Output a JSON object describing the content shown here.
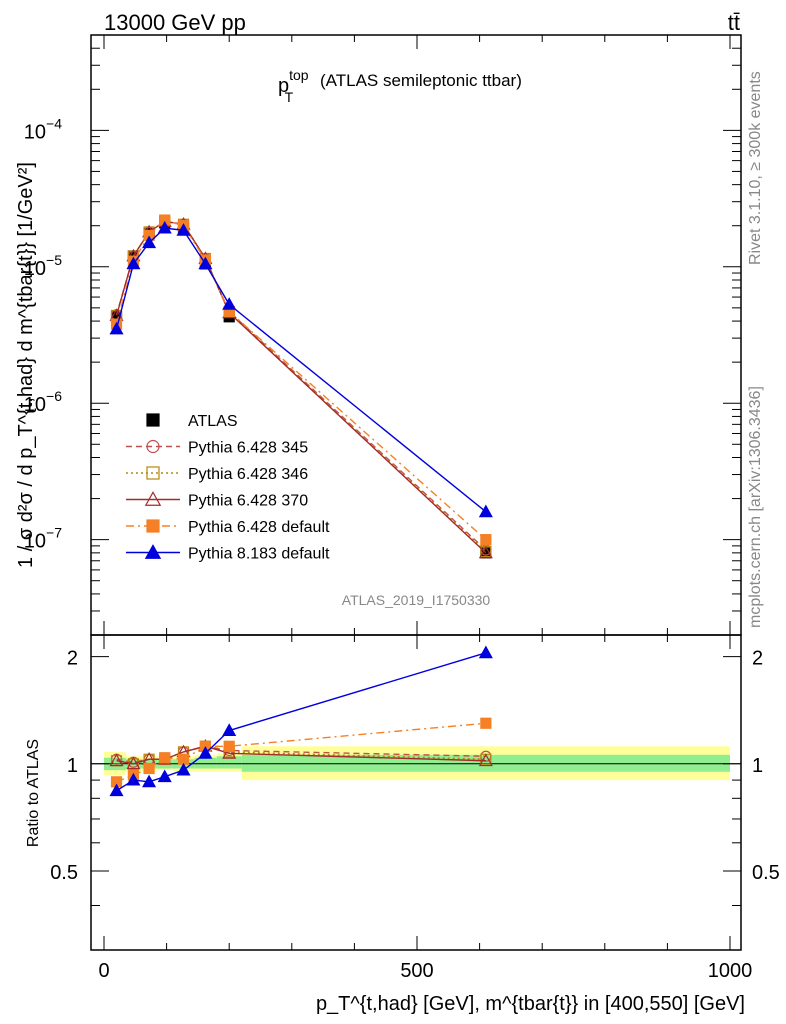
{
  "header": {
    "left": "13000 GeV pp",
    "right": "tt̄"
  },
  "side_labels": {
    "rivet": "Rivet 3.1.10, ≥ 300k events",
    "mcplots": "mcplots.cern.ch [arXiv:1306.3436]"
  },
  "chart_data": [
    {
      "type": "line",
      "panel": "main",
      "title": {
        "main": "p",
        "sup": "top",
        "sub": "T",
        "rest": "(ATLAS semileptonic ttbar)"
      },
      "ylabel": "1 / σ d²σ / d p_T^{t,had} d m^{tbar{t}} [1/GeV²]",
      "yscale": "log",
      "ylim": [
        2e-08,
        0.0005
      ],
      "xlim": [
        -20,
        1000
      ],
      "yticks": [
        {
          "value": 1e-07,
          "base": "10",
          "exp": "−7"
        },
        {
          "value": 1e-06,
          "base": "10",
          "exp": "−6"
        },
        {
          "value": 1e-05,
          "base": "10",
          "exp": "−5"
        },
        {
          "value": 0.0001,
          "base": "10",
          "exp": "−4"
        }
      ],
      "watermark": "ATLAS_2019_I1750330",
      "series": [
        {
          "name": "ATLAS",
          "color": "#000000",
          "marker": "square",
          "line": "none",
          "x": [
            20,
            47,
            72,
            97,
            127,
            162,
            200,
            610
          ],
          "y": [
            4.3e-06,
            1.2e-05,
            1.75e-05,
            2.1e-05,
            1.95e-05,
            1.05e-05,
            4.3e-06,
            8e-08
          ]
        },
        {
          "name": "Pythia 6.428 345",
          "color": "#c0504d",
          "marker": "circle-open",
          "line": "dashed",
          "x": [
            20,
            47,
            72,
            97,
            127,
            162,
            200,
            610
          ],
          "y": [
            4.45e-06,
            1.2e-05,
            1.8e-05,
            2.15e-05,
            2.05e-05,
            1.15e-05,
            4.7e-06,
            8.4e-08
          ]
        },
        {
          "name": "Pythia 6.428 346",
          "color": "#b8860b",
          "marker": "square-open",
          "line": "dotted",
          "x": [
            20,
            47,
            72,
            97,
            127,
            162,
            200,
            610
          ],
          "y": [
            4.4e-06,
            1.2e-05,
            1.8e-05,
            2.15e-05,
            2.05e-05,
            1.15e-05,
            4.65e-06,
            8.2e-08
          ]
        },
        {
          "name": "Pythia 6.428 370",
          "color": "#a52a2a",
          "marker": "triangle-open",
          "line": "solid",
          "x": [
            20,
            47,
            72,
            97,
            127,
            162,
            200,
            610
          ],
          "y": [
            4.4e-06,
            1.2e-05,
            1.8e-05,
            2.15e-05,
            2.05e-05,
            1.15e-05,
            4.6e-06,
            8e-08
          ]
        },
        {
          "name": "Pythia 6.428 default",
          "color": "#f58025",
          "marker": "square",
          "line": "dashdot",
          "x": [
            20,
            47,
            72,
            97,
            127,
            162,
            200,
            610
          ],
          "y": [
            3.8e-06,
            1.1e-05,
            1.7e-05,
            2.2e-05,
            2e-05,
            1.12e-05,
            4.7e-06,
            1e-07
          ]
        },
        {
          "name": "Pythia 8.183 default",
          "color": "#0000dd",
          "marker": "triangle",
          "line": "solid",
          "x": [
            20,
            47,
            72,
            97,
            127,
            162,
            200,
            610
          ],
          "y": [
            3.5e-06,
            1.05e-05,
            1.5e-05,
            1.92e-05,
            1.85e-05,
            1.05e-05,
            5.3e-06,
            1.6e-07
          ]
        }
      ]
    },
    {
      "type": "line",
      "panel": "ratio",
      "ylabel": "Ratio to ATLAS",
      "xlabel": "p_T^{t,had} [GeV], m^{tbar{t}} in [400,550] [GeV]",
      "xlim": [
        -20,
        1000
      ],
      "ylim": [
        0.3,
        2.3
      ],
      "yticks": [
        0.5,
        1,
        2
      ],
      "ytick_labels": [
        "0.5",
        "1",
        "2"
      ],
      "xticks": [
        0,
        500,
        1000
      ],
      "xtick_labels": [
        "0",
        "500",
        "1000"
      ],
      "bands": [
        {
          "x0": 0,
          "x1": 35,
          "in_lo": 0.96,
          "in_hi": 1.04,
          "out_lo": 0.93,
          "out_hi": 1.08
        },
        {
          "x0": 35,
          "x1": 60,
          "in_lo": 0.97,
          "in_hi": 1.03,
          "out_lo": 0.95,
          "out_hi": 1.05
        },
        {
          "x0": 60,
          "x1": 85,
          "in_lo": 0.97,
          "in_hi": 1.03,
          "out_lo": 0.95,
          "out_hi": 1.05
        },
        {
          "x0": 85,
          "x1": 110,
          "in_lo": 0.97,
          "in_hi": 1.03,
          "out_lo": 0.96,
          "out_hi": 1.05
        },
        {
          "x0": 110,
          "x1": 145,
          "in_lo": 0.97,
          "in_hi": 1.03,
          "out_lo": 0.95,
          "out_hi": 1.05
        },
        {
          "x0": 145,
          "x1": 180,
          "in_lo": 0.97,
          "in_hi": 1.04,
          "out_lo": 0.95,
          "out_hi": 1.06
        },
        {
          "x0": 180,
          "x1": 220,
          "in_lo": 0.97,
          "in_hi": 1.05,
          "out_lo": 0.95,
          "out_hi": 1.07
        },
        {
          "x0": 220,
          "x1": 1000,
          "in_lo": 0.95,
          "in_hi": 1.06,
          "out_lo": 0.9,
          "out_hi": 1.12
        }
      ],
      "series": [
        {
          "name": "Pythia 6.428 345",
          "color": "#c0504d",
          "marker": "circle-open",
          "line": "dashed",
          "x": [
            20,
            47,
            72,
            97,
            127,
            162,
            200,
            610
          ],
          "y": [
            1.03,
            1.01,
            1.03,
            1.03,
            1.08,
            1.12,
            1.09,
            1.05
          ]
        },
        {
          "name": "Pythia 6.428 346",
          "color": "#b8860b",
          "marker": "square-open",
          "line": "dotted",
          "x": [
            20,
            47,
            72,
            97,
            127,
            162,
            200,
            610
          ],
          "y": [
            1.02,
            1.0,
            1.03,
            1.03,
            1.08,
            1.12,
            1.08,
            1.03
          ]
        },
        {
          "name": "Pythia 6.428 370",
          "color": "#a52a2a",
          "marker": "triangle-open",
          "line": "solid",
          "x": [
            20,
            47,
            72,
            97,
            127,
            162,
            200,
            610
          ],
          "y": [
            1.02,
            1.0,
            1.03,
            1.03,
            1.08,
            1.12,
            1.07,
            1.02
          ]
        },
        {
          "name": "Pythia 6.428 default",
          "color": "#f58025",
          "marker": "square",
          "line": "dashdot",
          "x": [
            20,
            47,
            72,
            97,
            127,
            162,
            200,
            610
          ],
          "y": [
            0.89,
            0.93,
            0.97,
            1.04,
            1.03,
            1.12,
            1.12,
            1.3
          ]
        },
        {
          "name": "Pythia 8.183 default",
          "color": "#0000dd",
          "marker": "triangle",
          "line": "solid",
          "x": [
            20,
            47,
            72,
            97,
            127,
            162,
            200,
            610
          ],
          "y": [
            0.84,
            0.9,
            0.89,
            0.92,
            0.96,
            1.07,
            1.24,
            2.05
          ]
        }
      ]
    }
  ]
}
